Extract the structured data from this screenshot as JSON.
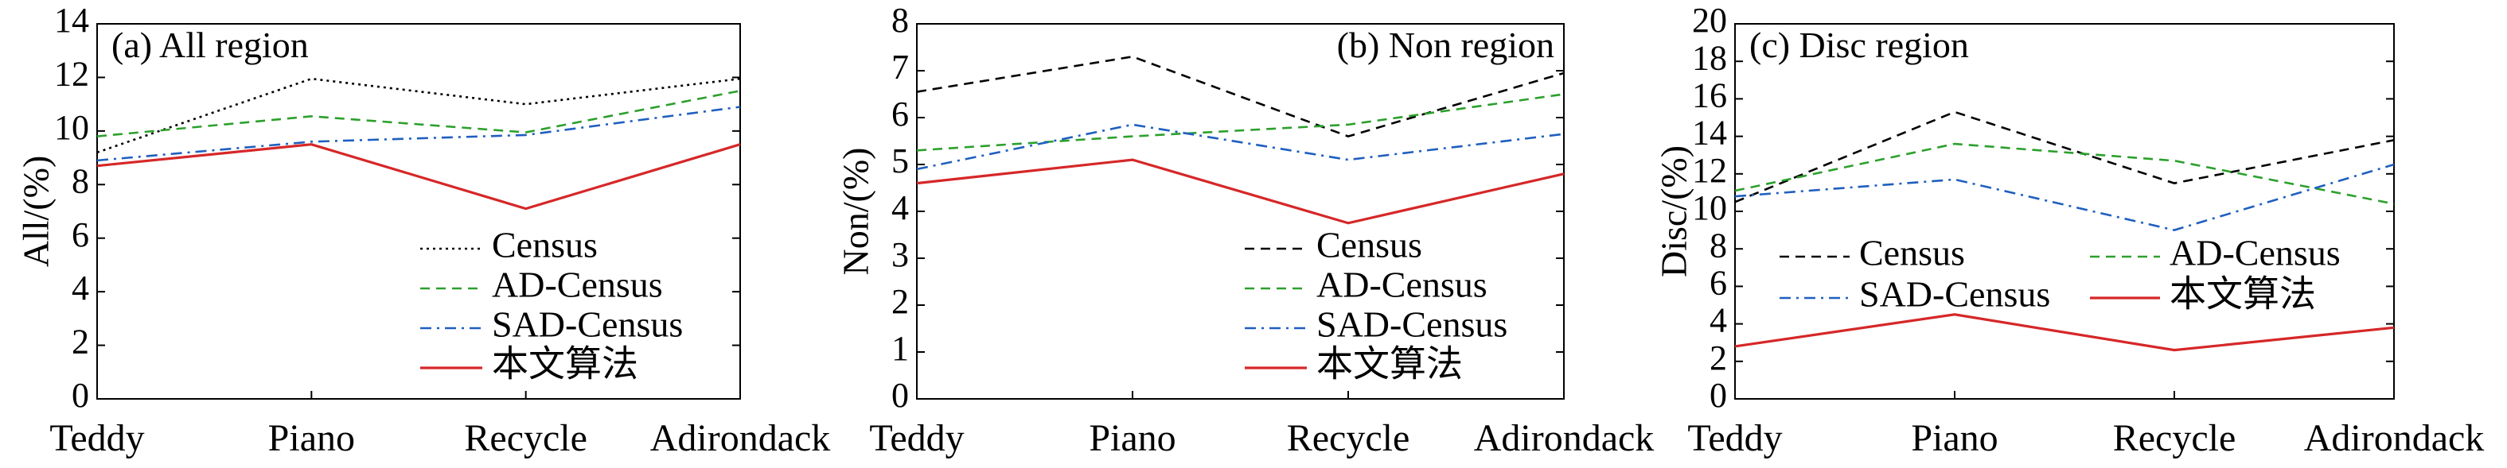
{
  "chart_data": [
    {
      "type": "line",
      "title": "(a) All region",
      "ylabel": "All/(%)",
      "xlabel": "",
      "categories": [
        "Teddy",
        "Piano",
        "Recycle",
        "Adirondack"
      ],
      "ylim": [
        0,
        14
      ],
      "yticks": [
        0,
        2,
        4,
        6,
        8,
        10,
        12,
        14
      ],
      "grid": false,
      "legend": {
        "placement": "bottom-right",
        "columns": 1
      },
      "series": [
        {
          "name": "Census",
          "values": [
            9.2,
            11.95,
            11.0,
            11.95
          ],
          "color": "#000000",
          "dash": "dotted"
        },
        {
          "name": "AD-Census",
          "values": [
            9.8,
            10.55,
            9.95,
            11.5
          ],
          "color": "#2ca02c",
          "dash": "dashed"
        },
        {
          "name": "SAD-Census",
          "values": [
            8.9,
            9.6,
            9.85,
            10.9
          ],
          "color": "#1f5fbf",
          "dash": "dashdot"
        },
        {
          "name": "本文算法",
          "values": [
            8.7,
            9.5,
            7.1,
            9.5
          ],
          "color": "#d62728",
          "dash": "solid"
        }
      ]
    },
    {
      "type": "line",
      "title": "(b) Non region",
      "ylabel": "Non/(%)",
      "xlabel": "",
      "categories": [
        "Teddy",
        "Piano",
        "Recycle",
        "Adirondack"
      ],
      "ylim": [
        0,
        8
      ],
      "yticks": [
        0,
        1,
        2,
        3,
        4,
        5,
        6,
        7,
        8
      ],
      "grid": false,
      "legend": {
        "placement": "bottom-right",
        "columns": 1
      },
      "series": [
        {
          "name": "Census",
          "values": [
            6.55,
            7.3,
            5.6,
            6.95
          ],
          "color": "#000000",
          "dash": "dashed"
        },
        {
          "name": "AD-Census",
          "values": [
            5.3,
            5.6,
            5.85,
            6.5
          ],
          "color": "#2ca02c",
          "dash": "dashed"
        },
        {
          "name": "SAD-Census",
          "values": [
            4.9,
            5.85,
            5.1,
            5.65
          ],
          "color": "#1f5fbf",
          "dash": "dashdot"
        },
        {
          "name": "本文算法",
          "values": [
            4.6,
            5.1,
            3.75,
            4.8
          ],
          "color": "#d62728",
          "dash": "solid"
        }
      ]
    },
    {
      "type": "line",
      "title": "(c) Disc region",
      "ylabel": "Disc/(%)",
      "xlabel": "",
      "categories": [
        "Teddy",
        "Piano",
        "Recycle",
        "Adirondack"
      ],
      "ylim": [
        0,
        20
      ],
      "yticks": [
        0,
        2,
        4,
        6,
        8,
        10,
        12,
        14,
        16,
        18,
        20
      ],
      "grid": false,
      "legend": {
        "placement": "center",
        "columns": 2
      },
      "series": [
        {
          "name": "Census",
          "values": [
            10.5,
            15.3,
            11.5,
            13.8
          ],
          "color": "#000000",
          "dash": "dashed"
        },
        {
          "name": "AD-Census",
          "values": [
            11.1,
            13.6,
            12.7,
            10.4
          ],
          "color": "#2ca02c",
          "dash": "dashed"
        },
        {
          "name": "SAD-Census",
          "values": [
            10.8,
            11.7,
            9.0,
            12.5
          ],
          "color": "#1f5fbf",
          "dash": "dashdot"
        },
        {
          "name": "本文算法",
          "values": [
            2.8,
            4.5,
            2.6,
            3.8
          ],
          "color": "#d62728",
          "dash": "solid"
        }
      ]
    }
  ]
}
